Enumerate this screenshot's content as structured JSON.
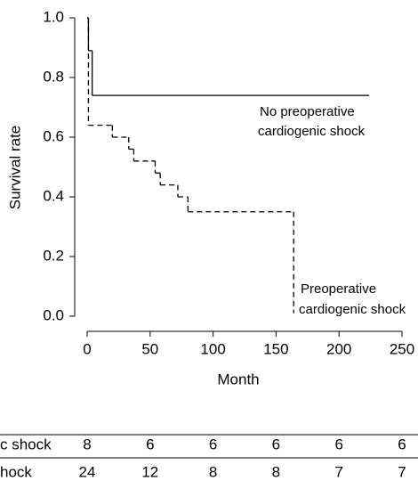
{
  "chart_data": {
    "type": "step",
    "y_label": "Survival rate",
    "x_label": "Month",
    "xlim": [
      0,
      250
    ],
    "xticks": [
      0,
      50,
      100,
      150,
      200,
      250
    ],
    "ylim": [
      0,
      1
    ],
    "yticks": [
      {
        "value": 0,
        "label": "0.0"
      },
      {
        "value": 0.2,
        "label": "0.2"
      },
      {
        "value": 0.4,
        "label": "0.4"
      },
      {
        "value": 0.6,
        "label": "0.6"
      },
      {
        "value": 0.8,
        "label": "0.8"
      },
      {
        "value": 1,
        "label": "1.0"
      }
    ],
    "series": [
      {
        "name": "No preoperative cardiogenic shock",
        "color": "#000000",
        "dash": false,
        "x": [
          0,
          1,
          4,
          224
        ],
        "values": [
          1.0,
          0.89,
          0.74,
          0.74
        ]
      },
      {
        "name": "Preoperative cardiogenic shock",
        "color": "#000000",
        "dash": true,
        "x": [
          0,
          1,
          20,
          33,
          37,
          54,
          58,
          72,
          80,
          164
        ],
        "values": [
          1.0,
          0.64,
          0.6,
          0.56,
          0.52,
          0.48,
          0.44,
          0.4,
          0.35,
          0.01
        ]
      }
    ],
    "annotations": [
      {
        "lines": [
          "No preoperative",
          "cardiogenic shock"
        ]
      },
      {
        "lines": [
          "Preoperative",
          "cardiogenic shock"
        ]
      }
    ]
  },
  "risk_table": {
    "rows": [
      {
        "label": "c shock",
        "counts": [
          8,
          6,
          6,
          6,
          6,
          6
        ]
      },
      {
        "label": "hock",
        "counts": [
          24,
          12,
          8,
          8,
          7,
          7
        ]
      }
    ]
  }
}
